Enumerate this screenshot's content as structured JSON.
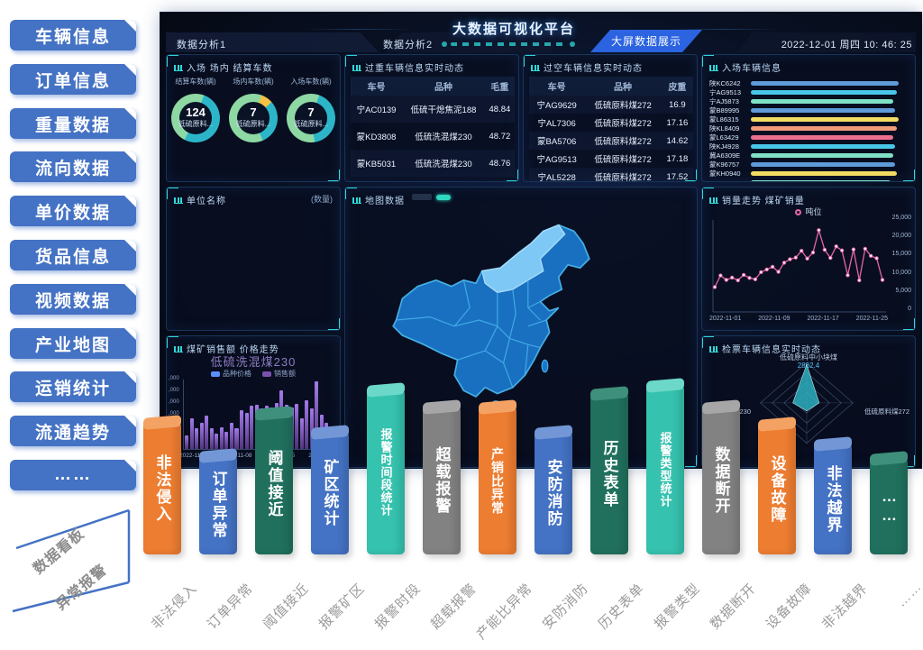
{
  "colors": {
    "sidebar_blue": "#4472C4",
    "alarm_orange": "#ED7D31",
    "alarm_blue": "#4472C4",
    "alarm_green": "#20705D",
    "alarm_teal": "#35C2AE",
    "alarm_gray": "#828282",
    "active_tab_blue": "#2B63E0",
    "dash_accent_cyan": "#2FD8D8",
    "trend_line_pink": "#E566A5"
  },
  "sidebar": {
    "items": [
      "车辆信息",
      "订单信息",
      "重量数据",
      "流向数据",
      "单价数据",
      "货品信息",
      "视频数据",
      "产业地图",
      "运销统计",
      "流通趋势",
      "……"
    ]
  },
  "corner_note": {
    "top": "数据看板",
    "bottom": "异常报警"
  },
  "header": {
    "tab1": "数据分析1",
    "tab2": "数据分析2",
    "title": "大数据可视化平台",
    "active_tab": "大屏数据展示",
    "datetime": "2022-12-01 周四 10: 46: 25"
  },
  "panels": {
    "entry_stats": {
      "title": "入场 场内 结算车数"
    },
    "gross_table": {
      "title": "过重车辆信息实时动态",
      "columns": [
        "车号",
        "品种",
        "毛重"
      ],
      "rows": [
        [
          "宁AC0139",
          "低硫干熄焦泥188",
          "48.84"
        ],
        [
          "蒙KD3808",
          "低硫洗混煤230",
          "48.72"
        ],
        [
          "蒙KB5031",
          "低硫洗混煤230",
          "48.76"
        ]
      ]
    },
    "tare_table": {
      "title": "过空车辆信息实时动态",
      "columns": [
        "车号",
        "品种",
        "皮重"
      ],
      "rows": [
        [
          "宁AG9629",
          "低硫原料煤272",
          "16.9"
        ],
        [
          "宁AL7306",
          "低硫原料煤272",
          "17.16"
        ],
        [
          "蒙BA5706",
          "低硫原料煤272",
          "14.62"
        ],
        [
          "宁AG9513",
          "低硫原料煤272",
          "17.18"
        ],
        [
          "宁AL5228",
          "低硫原料煤272",
          "17.52"
        ]
      ]
    },
    "entry_vehicles": {
      "title": "入场车辆信息"
    },
    "unit_name": {
      "title": "单位名称",
      "right_label": "(数量)"
    },
    "map": {
      "title": "地图数据"
    },
    "sales_trend": {
      "title": "销量走势 煤矿销量",
      "legend": "吨位",
      "y_ticks": [
        "25,000",
        "20,000",
        "15,000",
        "10,000",
        "5,000",
        "0"
      ],
      "x_ticks": [
        "2022-11-01",
        "2022-11-09",
        "2022-11-17",
        "2022-11-25"
      ]
    },
    "sales_amount": {
      "title": "煤矿销售额 价格走势",
      "overlay": "低硫洗混煤230",
      "legend": [
        "品种价格",
        "销售额"
      ],
      "y_ticks": [
        ",000",
        ",000",
        ",000",
        ",000",
        ",000",
        ",000",
        "0"
      ],
      "x_ticks": [
        "2022-11-01",
        "2022-11-08",
        "2022-11-15",
        "2022-11-22"
      ]
    },
    "radar": {
      "title": "检票车辆信息实时动态",
      "top_label": "低硫原料中小块煤",
      "top_value": "2862.4",
      "left_label": "低硫洗混煤230",
      "right_label": "低硫原料煤272"
    }
  },
  "alarm_bars": [
    {
      "bar": "非法侵入",
      "axis": "非法侵入",
      "color": "#ED7D31"
    },
    {
      "bar": "订单异常",
      "axis": "订单异常",
      "color": "#4472C4"
    },
    {
      "bar": "阈值接近",
      "axis": "阈值接近",
      "color": "#20705D"
    },
    {
      "bar": "矿区统计",
      "axis": "报警矿区",
      "color": "#4472C4"
    },
    {
      "bar": "报警时间段统计",
      "axis": "报警时段",
      "color": "#35C2AE"
    },
    {
      "bar": "超载报警",
      "axis": "超载报警",
      "color": "#828282"
    },
    {
      "bar": "产销比异常",
      "axis": "产能比异常",
      "color": "#ED7D31"
    },
    {
      "bar": "安防消防",
      "axis": "安防消防",
      "color": "#4472C4"
    },
    {
      "bar": "历史表单",
      "axis": "历史表单",
      "color": "#20705D"
    },
    {
      "bar": "报警类型统计",
      "axis": "报警类型",
      "color": "#35C2AE"
    },
    {
      "bar": "数据断开",
      "axis": "数据断开",
      "color": "#828282"
    },
    {
      "bar": "设备故障",
      "axis": "设备故障",
      "color": "#ED7D31"
    },
    {
      "bar": "非法越界",
      "axis": "非法越界",
      "color": "#4472C4"
    },
    {
      "bar": "……",
      "axis": "……",
      "color": "#20705D"
    }
  ],
  "chart_data": [
    {
      "type": "pie",
      "title": "入场 场内 结算车数",
      "donuts": [
        {
          "label": "结算车数(辆)",
          "value": "124",
          "sub": "低硫原料...",
          "segments": [
            {
              "color": "#2CB5C8",
              "pct": 52
            },
            {
              "color": "#8ED8A3",
              "pct": 48
            }
          ]
        },
        {
          "label": "场内车数(辆)",
          "value": "7",
          "sub": "低硫原料...",
          "segments": [
            {
              "color": "#F5C242",
              "pct": 8
            },
            {
              "color": "#2CB5C8",
              "pct": 30
            },
            {
              "color": "#8ED8A3",
              "pct": 62
            }
          ]
        },
        {
          "label": "入场车数(辆)",
          "value": "7",
          "sub": "低硫原料...",
          "segments": [
            {
              "color": "#2CB5C8",
              "pct": 42
            },
            {
              "color": "#8ED8A3",
              "pct": 58
            }
          ]
        }
      ]
    },
    {
      "type": "bar",
      "orientation": "horizontal",
      "title": "入场车辆信息",
      "categories": [
        "陕KC6242",
        "宁AG9513",
        "宁AJ5873",
        "蒙B89995",
        "蒙L86315",
        "陕KL8409",
        "蒙L63429",
        "陕KJ4928",
        "冀A6309E",
        "蒙K96757",
        "蒙KH0940",
        ""
      ],
      "values": [
        93,
        92,
        90,
        91,
        93,
        92,
        90,
        91,
        90,
        91,
        92,
        88
      ],
      "bar_colors": [
        "#5E9BD8",
        "#49C6E8",
        "#7FE0C4",
        "#5E9BD8",
        "#F2DC62",
        "#F09A7A",
        "#EC6E8F",
        "#49C6E8",
        "#7FE0C4",
        "#5E9BD8",
        "#F2DC62",
        "#7FE0C4"
      ]
    },
    {
      "type": "line",
      "title": "销量走势 煤矿销量",
      "series_name": "吨位",
      "x_ticks": [
        "2022-11-01",
        "2022-11-09",
        "2022-11-17",
        "2022-11-25"
      ],
      "ylim": [
        0,
        25000
      ],
      "values": [
        6800,
        10200,
        8900,
        9600,
        8800,
        10400,
        9500,
        9100,
        11200,
        12000,
        12800,
        11300,
        14000,
        15000,
        15500,
        17500,
        15200,
        17000,
        23600,
        17800,
        15400,
        18800,
        17600,
        10300,
        17900,
        8800,
        18100,
        16000,
        15300,
        8900
      ]
    },
    {
      "type": "bar",
      "title": "煤矿销售额 价格走势",
      "highlight": "低硫洗混煤230",
      "legend": [
        "品种价格",
        "销售额"
      ],
      "x_ticks": [
        "2022-11-01",
        "2022-11-08",
        "2022-11-15",
        "2022-11-22"
      ],
      "ymax": 14000,
      "values": [
        2800,
        6200,
        4100,
        5200,
        6800,
        4200,
        3100,
        4300,
        3400,
        5300,
        4200,
        7800,
        7200,
        8800,
        9000,
        8200,
        8800,
        8400,
        9200,
        11800,
        9000,
        8300,
        9100,
        6200,
        9800,
        8100,
        13600,
        7000,
        5200,
        4300
      ]
    },
    {
      "type": "radar",
      "title": "检票车辆信息实时动态",
      "axes": [
        "低硫原料中小块煤",
        "低硫原料煤272",
        "",
        "低硫洗混煤230"
      ],
      "values": [
        0.95,
        0.27,
        0.2,
        0.3
      ]
    }
  ]
}
